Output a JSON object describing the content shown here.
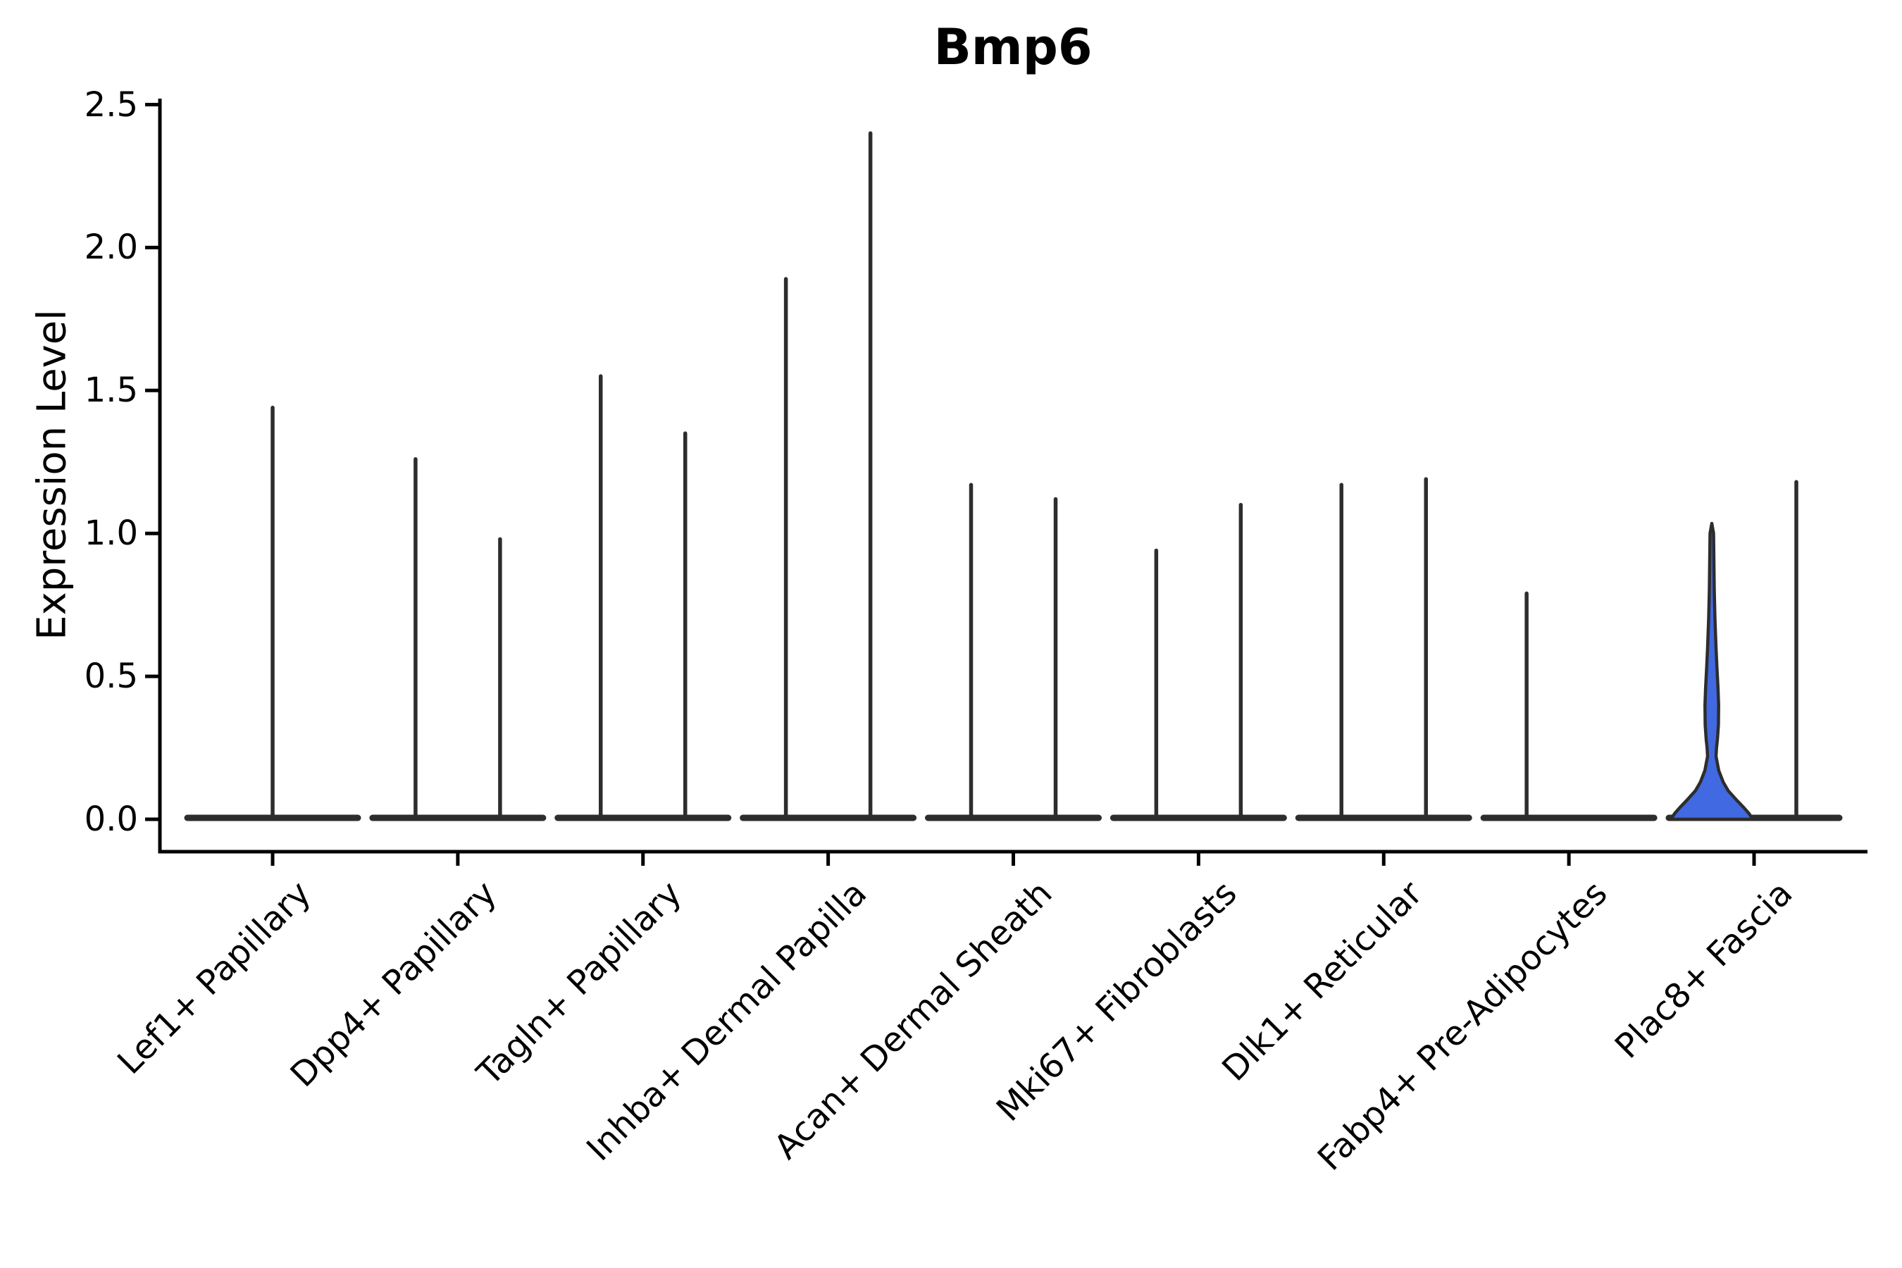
{
  "title": "Bmp6",
  "chart_data": {
    "type": "violin",
    "title": "Bmp6",
    "ylabel": "Expression Level",
    "xlabel": "",
    "ylim": [
      0.0,
      2.5
    ],
    "y_ticks": [
      "2.5",
      "2.0",
      "1.5",
      "1.0",
      "0.5",
      "0.0"
    ],
    "grid": false,
    "legend": "none",
    "categories": [
      "Lef1+ Papillary",
      "Dpp4+ Papillary",
      "Tagln+ Papillary",
      "Inhba+ Dermal Papilla",
      "Acan+ Dermal Sheath",
      "Mki67+ Fibroblasts",
      "Dlk1+ Reticular",
      "Fabp4+ Pre-Adipocytes",
      "Plac8+ Fascia"
    ],
    "violins": [
      {
        "category": "Lef1+ Papillary",
        "side": "center",
        "max_expression": 1.44,
        "style": "spike"
      },
      {
        "category": "Dpp4+ Papillary",
        "side": "left",
        "max_expression": 1.26,
        "style": "spike"
      },
      {
        "category": "Dpp4+ Papillary",
        "side": "right",
        "max_expression": 0.98,
        "style": "spike"
      },
      {
        "category": "Tagln+ Papillary",
        "side": "left",
        "max_expression": 1.55,
        "style": "spike"
      },
      {
        "category": "Tagln+ Papillary",
        "side": "right",
        "max_expression": 1.35,
        "style": "spike"
      },
      {
        "category": "Inhba+ Dermal Papilla",
        "side": "left",
        "max_expression": 1.89,
        "style": "spike"
      },
      {
        "category": "Inhba+ Dermal Papilla",
        "side": "right",
        "max_expression": 2.4,
        "style": "spike"
      },
      {
        "category": "Acan+ Dermal Sheath",
        "side": "left",
        "max_expression": 1.17,
        "style": "spike"
      },
      {
        "category": "Acan+ Dermal Sheath",
        "side": "right",
        "max_expression": 1.12,
        "style": "spike"
      },
      {
        "category": "Mki67+ Fibroblasts",
        "side": "left",
        "max_expression": 0.94,
        "style": "spike"
      },
      {
        "category": "Mki67+ Fibroblasts",
        "side": "right",
        "max_expression": 1.1,
        "style": "spike"
      },
      {
        "category": "Dlk1+ Reticular",
        "side": "left",
        "max_expression": 1.17,
        "style": "spike"
      },
      {
        "category": "Dlk1+ Reticular",
        "side": "right",
        "max_expression": 1.19,
        "style": "spike"
      },
      {
        "category": "Fabp4+ Pre-Adipocytes",
        "side": "left",
        "max_expression": 0.79,
        "style": "spike"
      },
      {
        "category": "Fabp4+ Pre-Adipocytes",
        "side": "right",
        "max_expression": 0.0,
        "style": "flat"
      },
      {
        "category": "Plac8+ Fascia",
        "side": "left",
        "max_expression": 1.04,
        "style": "filled",
        "profile": [
          [
            0.0,
            1.0
          ],
          [
            0.02,
            0.91
          ],
          [
            0.04,
            0.79
          ],
          [
            0.065,
            0.62
          ],
          [
            0.1,
            0.4
          ],
          [
            0.13,
            0.28
          ],
          [
            0.17,
            0.17
          ],
          [
            0.22,
            0.103
          ],
          [
            0.25,
            0.115
          ],
          [
            0.28,
            0.138
          ],
          [
            0.33,
            0.162
          ],
          [
            0.4,
            0.167
          ],
          [
            0.46,
            0.152
          ],
          [
            0.53,
            0.126
          ],
          [
            0.6,
            0.103
          ],
          [
            0.7,
            0.078
          ],
          [
            0.8,
            0.06
          ],
          [
            0.9,
            0.052
          ],
          [
            1.0,
            0.043
          ],
          [
            1.035,
            0.0
          ]
        ]
      },
      {
        "category": "Plac8+ Fascia",
        "side": "right",
        "max_expression": 1.18,
        "style": "spike"
      }
    ],
    "colors": {
      "outline": "#2D2D2D",
      "highlight_fill": "#4169E1",
      "axis": "#000000",
      "background": "#FFFFFF",
      "text": "#000000"
    }
  }
}
